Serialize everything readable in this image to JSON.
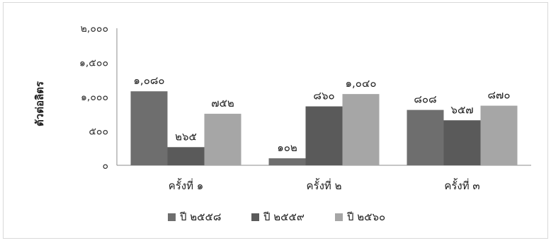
{
  "chart_data": {
    "type": "bar",
    "title": "",
    "xlabel": "",
    "ylabel": "ตัวต่อลิตร",
    "ylim": [
      0,
      2000
    ],
    "yticks": [
      0,
      500,
      1000,
      1500,
      2000
    ],
    "ytick_labels": [
      "๐",
      "๕๐๐",
      "๑,๐๐๐",
      "๑,๕๐๐",
      "๒,๐๐๐"
    ],
    "categories": [
      "ครั้งที่ ๑",
      "ครั้งที่ ๒",
      "ครั้งที่ ๓"
    ],
    "series": [
      {
        "name": "ปี ๒๕๕๘",
        "color": "#6e6e6e",
        "values": [
          1080,
          102,
          808
        ],
        "labels": [
          "๑,๐๘๐",
          "๑๐๒",
          "๘๐๘"
        ]
      },
      {
        "name": "ปี ๒๕๕๙",
        "color": "#5a5a5a",
        "values": [
          265,
          860,
          657
        ],
        "labels": [
          "๒๖๕",
          "๘๖๐",
          "๖๕๗"
        ]
      },
      {
        "name": "ปี ๒๕๖๐",
        "color": "#a6a6a6",
        "values": [
          752,
          1040,
          870
        ],
        "labels": [
          "๗๕๒",
          "๑,๐๔๐",
          "๘๗๐"
        ]
      }
    ],
    "grid": false,
    "legend": "bottom"
  }
}
